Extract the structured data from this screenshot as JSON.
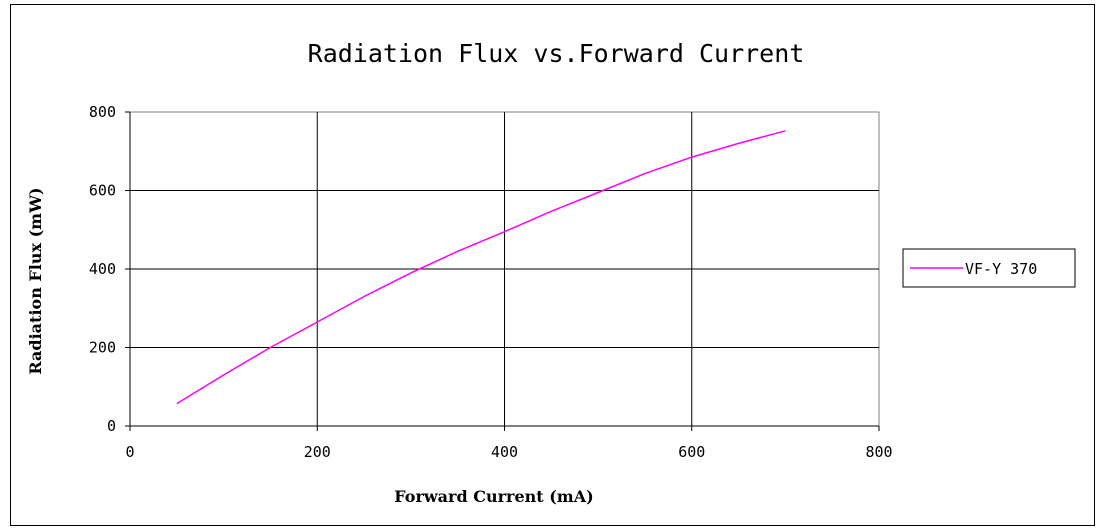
{
  "chart_data": {
    "type": "line",
    "title": "Radiation Flux vs.Forward Current",
    "xlabel": "Forward Current (mA)",
    "ylabel": "Radiation Flux (mW)",
    "xlim": [
      0,
      800
    ],
    "ylim": [
      0,
      800
    ],
    "x_ticks": [
      "0",
      "200",
      "400",
      "600",
      "800"
    ],
    "y_ticks": [
      "0",
      "200",
      "400",
      "600",
      "800"
    ],
    "grid": true,
    "legend_position": "right",
    "series": [
      {
        "name": "VF-Y 370",
        "color": "#ff00ff",
        "x": [
          50,
          100,
          150,
          200,
          250,
          300,
          350,
          400,
          450,
          500,
          550,
          600,
          650,
          700
        ],
        "y": [
          57,
          130,
          200,
          265,
          330,
          390,
          445,
          495,
          547,
          595,
          643,
          685,
          720,
          752
        ]
      }
    ]
  }
}
